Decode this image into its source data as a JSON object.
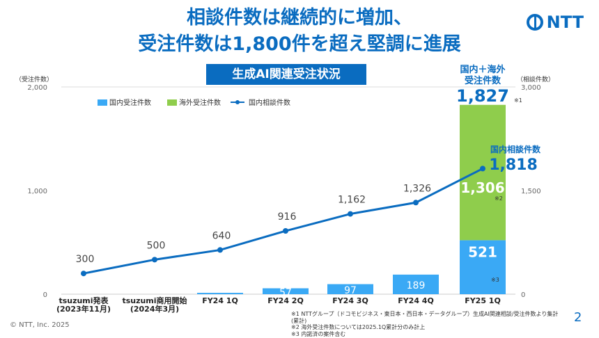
{
  "header": {
    "title_line1": "相談件数は継続的に増加、",
    "title_line2": "受注件数は1,800件を超え堅調に進展",
    "subtitle": "生成AI関連受注状況",
    "logo": "NTT"
  },
  "chart_data": {
    "type": "bar",
    "categories": [
      "tsuzumi発表\n(2023年11月)",
      "tsuzumi商用開始\n(2024年3月)",
      "FY24 1Q",
      "FY24 2Q",
      "FY24 3Q",
      "FY24 4Q",
      "FY25 1Q"
    ],
    "category_lines": [
      [
        "tsuzumi発表",
        "(2023年11月)"
      ],
      [
        "tsuzumi商用開始",
        "(2024年3月)"
      ],
      [
        "FY24 1Q"
      ],
      [
        "FY24 2Q"
      ],
      [
        "FY24 3Q"
      ],
      [
        "FY24 4Q"
      ],
      [
        "FY25 1Q"
      ]
    ],
    "ylabel": "（受注件数）",
    "ylabel_right": "（相談件数）",
    "ylim": [
      0,
      2000
    ],
    "ylim_right": [
      0,
      3000
    ],
    "yticks": [
      "0",
      "1,000",
      "2,000"
    ],
    "yticks_right": [
      "0",
      "1,500",
      "3,000"
    ],
    "legend_position": "top-left",
    "series": [
      {
        "name": "国内受注件数",
        "type": "bar",
        "axis": "left",
        "color": "#3aa9f5",
        "values": [
          null,
          null,
          13,
          57,
          97,
          189,
          521
        ],
        "labels": [
          "",
          "",
          "",
          "57",
          "97",
          "189",
          "521"
        ]
      },
      {
        "name": "海外受注件数",
        "type": "bar",
        "axis": "left",
        "stacked": true,
        "color": "#8fcd4c",
        "values": [
          null,
          null,
          null,
          null,
          null,
          null,
          1306
        ],
        "labels": [
          "",
          "",
          "",
          "",
          "",
          "",
          "1,306"
        ]
      },
      {
        "name": "国内相談件数",
        "type": "line",
        "axis": "right",
        "color": "#0a6cc0",
        "values": [
          300,
          500,
          640,
          916,
          1162,
          1326,
          1818
        ],
        "labels": [
          "300",
          "500",
          "640",
          "916",
          "1,162",
          "1,326",
          ""
        ]
      }
    ],
    "annotations": {
      "total_title_1": "国内＋海外",
      "total_title_2": "受注件数",
      "total_value": "1,827",
      "total_note": "※1",
      "consult_title": "国内相談件数",
      "consult_value": "1,818",
      "overseas_note": "※2",
      "domestic_note": "※3"
    }
  },
  "footer": {
    "copyright": "© NTT, Inc.  2025",
    "page": "2",
    "notes": [
      "※1  NTTグループ（ドコモビジネス・東日本・西日本・データグループ）生成AI関連相談/受注件数より集計(累計)",
      "※2  海外受注件数については2025.1Q累計分のみ計上",
      "※3  内諾済の案件含む"
    ]
  }
}
